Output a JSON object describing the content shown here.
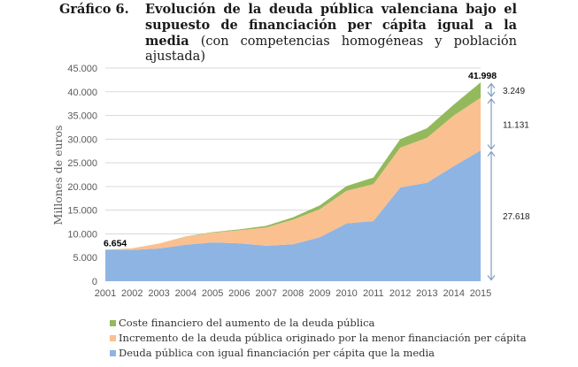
{
  "title": {
    "number": "Gráfico 6.",
    "bold": "Evolución de la deuda pública valenciana bajo el supuesto de financiación per cápita igual a la media",
    "normal": " (con competencias homogéneas y población ajustada)"
  },
  "colors": {
    "blue": "#8eb4e3",
    "orange": "#fac090",
    "green": "#93b95c",
    "grid": "#d9d9d9",
    "axis_text": "#595959",
    "arrow": "#7f9cbf"
  },
  "chart_data": {
    "type": "area",
    "stacked": true,
    "title": "Evolución de la deuda pública valenciana bajo el supuesto de financiación per cápita igual a la media (con competencias homogéneas y población ajustada)",
    "xlabel": "",
    "ylabel": "Millones de euros",
    "ylim": [
      0,
      45000
    ],
    "yticks": [
      0,
      5000,
      10000,
      15000,
      20000,
      25000,
      30000,
      35000,
      40000,
      45000
    ],
    "ytick_labels": [
      "0",
      "5.000",
      "10.000",
      "15.000",
      "20.000",
      "25.000",
      "30.000",
      "35.000",
      "40.000",
      "45.000"
    ],
    "grid": true,
    "legend_position": "bottom",
    "x": [
      "2001",
      "2002",
      "2003",
      "2004",
      "2005",
      "2006",
      "2007",
      "2008",
      "2009",
      "2010",
      "2011",
      "2012",
      "2013",
      "2014",
      "2015"
    ],
    "series": [
      {
        "name": "Deuda pública con igual financiación per cápita que la media",
        "color_key": "blue",
        "values": [
          6654,
          6600,
          6900,
          7700,
          8200,
          8000,
          7500,
          7800,
          9300,
          12200,
          12700,
          19800,
          20800,
          24300,
          27618
        ]
      },
      {
        "name": "Incremento de la deuda pública originado por la menor financiación per cápita",
        "color_key": "orange",
        "values": [
          0,
          350,
          1050,
          1700,
          2050,
          2750,
          3850,
          5200,
          5900,
          6900,
          7800,
          8400,
          9500,
          10700,
          11131
        ]
      },
      {
        "name": "Coste financiero del aumento de la deuda pública",
        "color_key": "green",
        "values": [
          0,
          0,
          20,
          60,
          120,
          200,
          350,
          500,
          800,
          1000,
          1400,
          1800,
          2000,
          2300,
          3249
        ]
      }
    ],
    "annotations": [
      {
        "text": "6.654",
        "x": "2001",
        "value": 6654,
        "bold": true
      },
      {
        "text": "41.998",
        "x": "2015",
        "value": 41998,
        "bold": true
      },
      {
        "text": "3.249",
        "series": "Coste financiero del aumento de la deuda pública",
        "x": "2015"
      },
      {
        "text": "11.131",
        "series": "Incremento de la deuda pública originado por la menor financiación per cápita",
        "x": "2015"
      },
      {
        "text": "27.618",
        "series": "Deuda pública con igual financiación per cápita que la media",
        "x": "2015"
      }
    ]
  },
  "legend": [
    {
      "label": "Coste financiero del aumento de la deuda pública",
      "color_key": "green"
    },
    {
      "label": "Incremento de la deuda pública originado por la menor financiación per cápita",
      "color_key": "orange"
    },
    {
      "label": "Deuda pública con igual financiación per cápita que la media",
      "color_key": "blue"
    }
  ]
}
